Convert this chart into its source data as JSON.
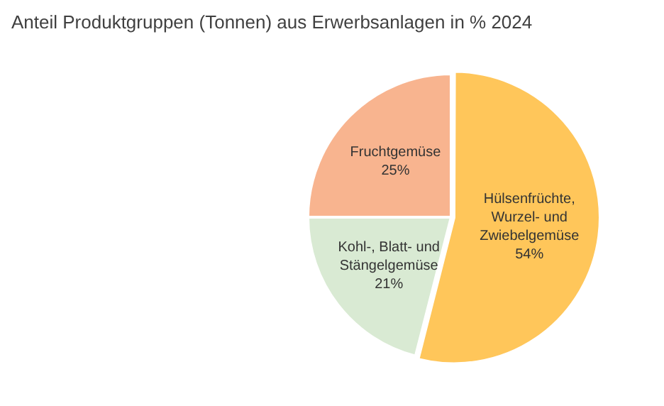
{
  "chart_data": {
    "type": "pie",
    "title": "Anteil Produktgruppen (Tonnen) aus Erwerbsanlagen in % 2024",
    "categories": [
      "Hülsenfrüchte, Wurzel- und Zwiebelgemüse",
      "Kohl-, Blatt- und Stängelgemüse",
      "Fruchtgemüse"
    ],
    "values": [
      54,
      21,
      25
    ],
    "value_labels": [
      "54%",
      "21%",
      "25%"
    ],
    "colors": [
      "#ffc65a",
      "#d9ead3",
      "#f8b48f"
    ],
    "legend": false
  }
}
